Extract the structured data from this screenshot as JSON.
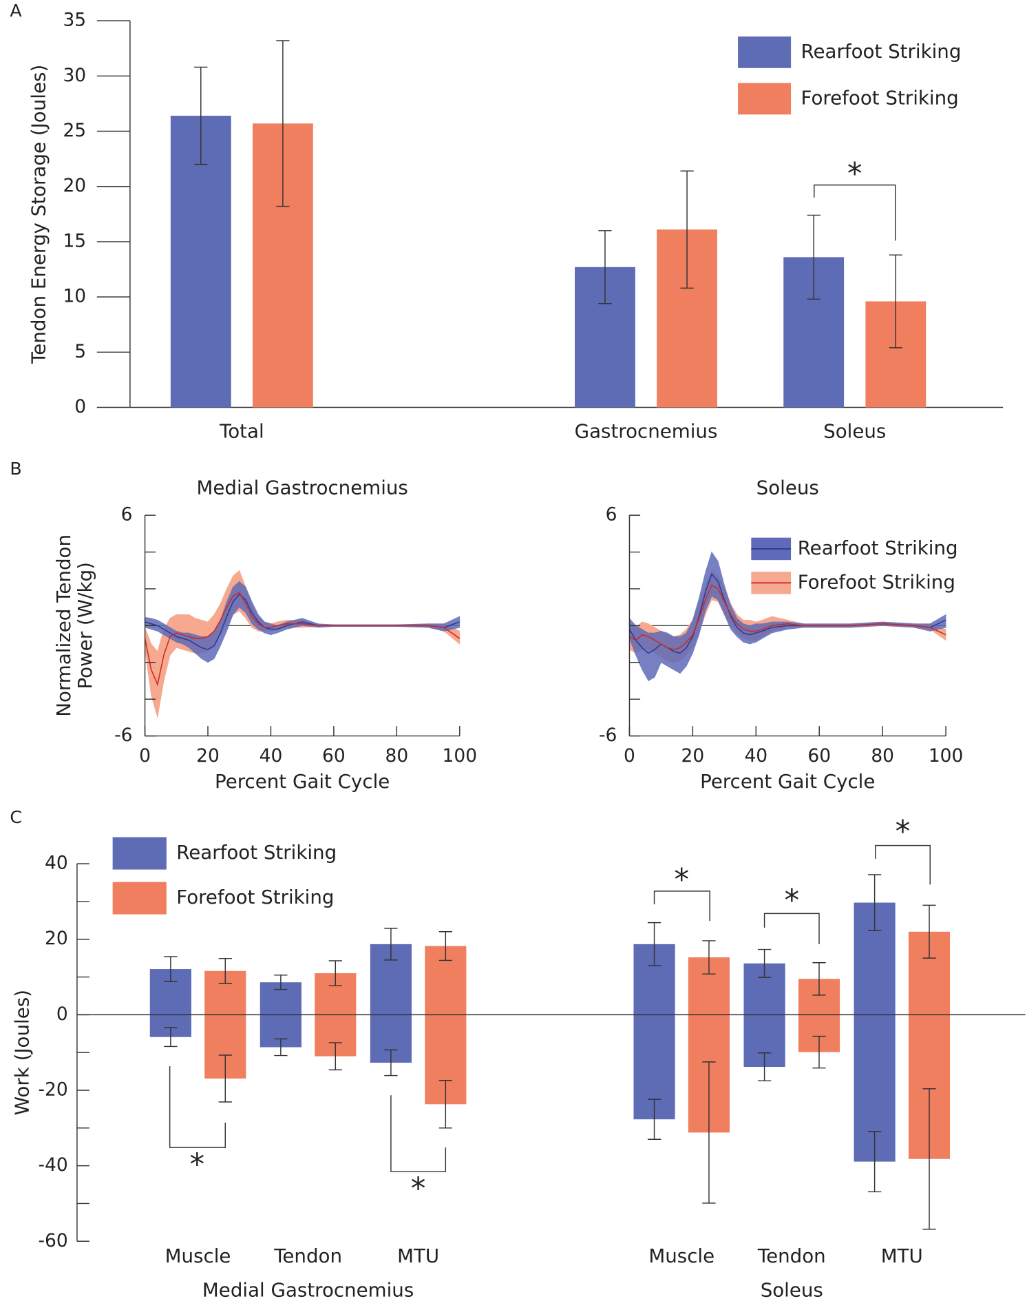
{
  "chart_data": [
    {
      "type": "bar",
      "panel_label": "A",
      "ylabel": "Tendon Energy Storage (Joules)",
      "categories": [
        "Total",
        "Gastrocnemius",
        "Soleus"
      ],
      "series": [
        {
          "name": "Rearfoot Striking",
          "color": "#5e6bb5",
          "values": [
            26.4,
            12.7,
            13.6
          ],
          "errors": [
            4.4,
            3.3,
            3.8
          ]
        },
        {
          "name": "Forefoot Striking",
          "color": "#f07f60",
          "values": [
            25.7,
            16.1,
            9.6
          ],
          "errors": [
            7.5,
            5.3,
            4.2
          ]
        }
      ],
      "ylim": [
        0,
        35
      ],
      "yticks": [
        0,
        5,
        10,
        15,
        20,
        25,
        30,
        35
      ],
      "legend": "upper right",
      "significance": [
        "*"
      ]
    },
    {
      "type": "line",
      "panel_label": "B",
      "title": "Medial Gastrocnemius",
      "ylabel": [
        "Normalized Tendon",
        "Power (W/kg)"
      ],
      "xlabel": "Percent Gait Cycle",
      "x": [
        0,
        2,
        4,
        6,
        8,
        10,
        12,
        14,
        16,
        18,
        20,
        22,
        24,
        26,
        28,
        30,
        32,
        34,
        36,
        38,
        40,
        42,
        45,
        50,
        55,
        60,
        70,
        80,
        90,
        95,
        100
      ],
      "series": [
        {
          "color": "#5f6bb8",
          "line_color": "#2e3a94",
          "values": [
            0.2,
            0.1,
            0,
            -0.2,
            -0.4,
            -0.6,
            -0.7,
            -0.8,
            -1.0,
            -1.2,
            -1.3,
            -1.1,
            -0.4,
            0.5,
            1.3,
            1.7,
            1.4,
            0.7,
            0.2,
            -0.1,
            -0.2,
            -0.2,
            0,
            0.2,
            0,
            0,
            0,
            0,
            0,
            -0.1,
            0.2
          ],
          "lower": [
            -0.1,
            -0.2,
            -0.3,
            -0.5,
            -0.7,
            -0.9,
            -1.0,
            -1.2,
            -1.5,
            -1.8,
            -2.0,
            -1.8,
            -1.1,
            -0.3,
            0.6,
            1.0,
            0.7,
            0.1,
            -0.2,
            -0.4,
            -0.5,
            -0.4,
            -0.2,
            0,
            -0.1,
            -0.05,
            -0.05,
            -0.05,
            -0.1,
            -0.3,
            -0.1
          ],
          "upper": [
            0.45,
            0.4,
            0.3,
            0.1,
            -0.1,
            -0.3,
            -0.4,
            -0.4,
            -0.5,
            -0.6,
            -0.6,
            -0.3,
            0.3,
            1.3,
            2.1,
            2.4,
            2.1,
            1.3,
            0.6,
            0.2,
            0.1,
            0,
            0.2,
            0.4,
            0.1,
            0.05,
            0.05,
            0.05,
            0.1,
            0.1,
            0.5
          ]
        },
        {
          "color": "#f7a98f",
          "line_color": "#cc2a26",
          "values": [
            -0.7,
            -2.4,
            -3.2,
            -1.6,
            -0.6,
            -0.4,
            -0.5,
            -0.6,
            -0.7,
            -0.7,
            -0.6,
            -0.3,
            0.3,
            1.0,
            1.6,
            1.8,
            1.2,
            0.5,
            0.1,
            -0.1,
            -0.1,
            0,
            0.1,
            0.1,
            0,
            0,
            0,
            0,
            0,
            -0.1,
            -0.7
          ],
          "lower": [
            -1.3,
            -3.8,
            -5.0,
            -3.0,
            -1.6,
            -1.2,
            -1.3,
            -1.4,
            -1.5,
            -1.5,
            -1.4,
            -1.1,
            -0.5,
            0.1,
            0.6,
            0.8,
            0.4,
            -0.1,
            -0.3,
            -0.3,
            -0.3,
            -0.2,
            -0.1,
            -0.1,
            -0.05,
            -0.05,
            -0.05,
            -0.05,
            -0.1,
            -0.3,
            -1.0
          ],
          "upper": [
            -0.1,
            -1.0,
            -1.4,
            -0.2,
            0.4,
            0.6,
            0.6,
            0.6,
            0.4,
            0.3,
            0.2,
            0.6,
            1.2,
            2.0,
            2.7,
            3.0,
            2.1,
            1.1,
            0.5,
            0.2,
            0.1,
            0.2,
            0.3,
            0.3,
            0.05,
            0.05,
            0.05,
            0.05,
            0.1,
            0.1,
            -0.3
          ]
        }
      ],
      "xlim": [
        0,
        100
      ],
      "xticks": [
        0,
        20,
        40,
        60,
        80,
        100
      ],
      "ylim": [
        -6,
        6
      ],
      "yticks": [
        -6,
        6
      ],
      "yminor": [
        -4,
        -2,
        0,
        2,
        4
      ]
    },
    {
      "type": "line",
      "title": "Soleus",
      "xlabel": "Percent Gait Cycle",
      "x": [
        0,
        2,
        4,
        6,
        8,
        10,
        12,
        14,
        16,
        18,
        20,
        22,
        24,
        26,
        28,
        30,
        32,
        34,
        36,
        38,
        40,
        42,
        45,
        50,
        55,
        60,
        70,
        80,
        90,
        95,
        100
      ],
      "series": [
        {
          "name": "Rearfoot Striking",
          "color": "#5f6bb8",
          "line_color": "#2e3a94",
          "values": [
            -0.2,
            -0.8,
            -1.2,
            -1.5,
            -1.3,
            -1.0,
            -1.2,
            -1.4,
            -1.5,
            -1.2,
            -0.6,
            0.5,
            1.8,
            2.8,
            2.4,
            1.4,
            0.5,
            -0.1,
            -0.4,
            -0.5,
            -0.4,
            -0.3,
            -0.1,
            0,
            0,
            0,
            0,
            0.1,
            0,
            -0.1,
            0.3
          ],
          "lower": [
            -0.7,
            -1.6,
            -2.4,
            -3.0,
            -2.8,
            -2.0,
            -2.2,
            -2.4,
            -2.6,
            -2.2,
            -1.5,
            -0.5,
            0.8,
            1.6,
            1.4,
            0.6,
            -0.2,
            -0.6,
            -0.9,
            -1.0,
            -0.9,
            -0.7,
            -0.4,
            -0.2,
            -0.1,
            -0.1,
            -0.1,
            0,
            -0.1,
            -0.3,
            -0.1
          ],
          "upper": [
            0.4,
            0,
            -0.2,
            -0.4,
            -0.4,
            -0.3,
            -0.4,
            -0.6,
            -0.6,
            -0.4,
            0.3,
            1.5,
            2.9,
            4.0,
            3.5,
            2.2,
            1.1,
            0.4,
            0.1,
            0,
            0.1,
            0.1,
            0.2,
            0.2,
            0.1,
            0.1,
            0.1,
            0.2,
            0.1,
            0.1,
            0.6
          ]
        },
        {
          "name": "Forefoot Striking",
          "color": "#f7a98f",
          "line_color": "#cc2a26",
          "values": [
            -0.6,
            -0.8,
            -0.5,
            -0.6,
            -0.8,
            -1.0,
            -1.2,
            -1.3,
            -1.2,
            -0.9,
            -0.5,
            0.4,
            1.4,
            2.2,
            2.0,
            1.3,
            0.6,
            0.1,
            -0.2,
            -0.3,
            -0.3,
            -0.2,
            0,
            0.1,
            0,
            0,
            0,
            0.1,
            0,
            -0.1,
            -0.5
          ],
          "lower": [
            -1.3,
            -1.5,
            -1.3,
            -1.3,
            -1.5,
            -1.7,
            -1.9,
            -2.0,
            -1.9,
            -1.6,
            -1.2,
            -0.4,
            0.6,
            1.4,
            1.3,
            0.6,
            0,
            -0.4,
            -0.7,
            -0.8,
            -0.8,
            -0.6,
            -0.3,
            -0.1,
            -0.1,
            -0.1,
            -0.1,
            0,
            -0.1,
            -0.2,
            -0.8
          ],
          "upper": [
            0.1,
            -0.1,
            0.2,
            0.1,
            -0.1,
            -0.3,
            -0.5,
            -0.6,
            -0.5,
            -0.2,
            0.3,
            1.2,
            2.2,
            3.0,
            2.7,
            2.0,
            1.2,
            0.6,
            0.3,
            0.3,
            0.2,
            0.3,
            0.5,
            0.3,
            0.1,
            0.1,
            0.1,
            0.2,
            0.1,
            0.1,
            -0.2
          ]
        }
      ],
      "xlim": [
        0,
        100
      ],
      "xticks": [
        0,
        20,
        40,
        60,
        80,
        100
      ],
      "ylim": [
        -6,
        6
      ],
      "yticks": [
        -6,
        6
      ],
      "yminor": [
        -4,
        -2,
        0,
        2,
        4
      ],
      "legend": "upper right"
    },
    {
      "type": "diverging_bar",
      "panel_label": "C",
      "ylabel": "Work (Joules)",
      "categories": [
        "Muscle",
        "Tendon",
        "MTU",
        "Muscle",
        "Tendon",
        "MTU"
      ],
      "groups": [
        "Medial Gastrocnemius",
        "Soleus"
      ],
      "series": [
        {
          "name": "Rearfoot Striking",
          "color": "#5e6bb5",
          "positive": [
            12.1,
            8.6,
            18.7,
            18.7,
            13.6,
            29.7
          ],
          "errors_positive": [
            3.3,
            1.9,
            4.2,
            5.7,
            3.7,
            7.4
          ],
          "negative": [
            -5.9,
            -8.6,
            -12.7,
            -27.7,
            -13.8,
            -38.9
          ],
          "errors_negative": [
            2.5,
            2.2,
            3.4,
            5.3,
            3.7,
            8.0
          ]
        },
        {
          "name": "Forefoot Striking",
          "color": "#f07f60",
          "positive": [
            11.6,
            11.0,
            18.2,
            15.2,
            9.5,
            22.0
          ],
          "errors_positive": [
            3.3,
            3.3,
            3.8,
            4.4,
            4.3,
            7.0
          ],
          "negative": [
            -16.9,
            -11.0,
            -23.7,
            -31.2,
            -9.9,
            -38.2
          ],
          "errors_negative": [
            6.2,
            3.6,
            6.3,
            18.7,
            4.2,
            18.6
          ]
        }
      ],
      "ylim": [
        -60,
        40
      ],
      "yticks": [
        -60,
        -40,
        -20,
        0,
        20,
        40
      ],
      "yminor": [
        -50,
        -30,
        -10,
        10,
        30
      ],
      "legend": "upper left",
      "significance": [
        "*",
        "*",
        "*",
        "*",
        "*"
      ]
    }
  ]
}
